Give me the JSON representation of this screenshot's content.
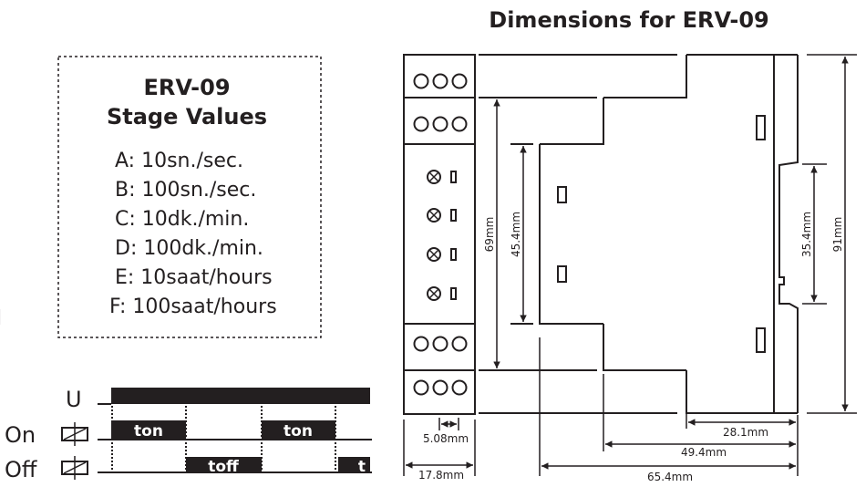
{
  "title": "Dimensions for ERV-09",
  "edge_fragment": "l",
  "stage_box": {
    "title_line1": "ERV-09",
    "title_line2": "Stage Values",
    "values": [
      "A: 10sn./sec.",
      "B: 100sn./sec.",
      "C: 10dk./min.",
      "D: 100dk./min.",
      "E: 10saat/hours",
      "F: 100saat/hours"
    ]
  },
  "timing": {
    "supply_label": "U",
    "on_label": "On",
    "off_label": "Off",
    "on_pulses": [
      "ton",
      "ton"
    ],
    "off_pulses": [
      "toff",
      "t"
    ]
  },
  "dimensions": {
    "height_total": "91mm",
    "rail": "35.4mm",
    "front_height": "69mm",
    "front_inner": "45.4mm",
    "width_module": "17.8mm",
    "pitch": "5.08mm",
    "depth_total": "65.4mm",
    "depth_mid": "49.4mm",
    "depth_rail": "28.1mm"
  },
  "colors": {
    "ink": "#231f20",
    "background": "#ffffff"
  }
}
